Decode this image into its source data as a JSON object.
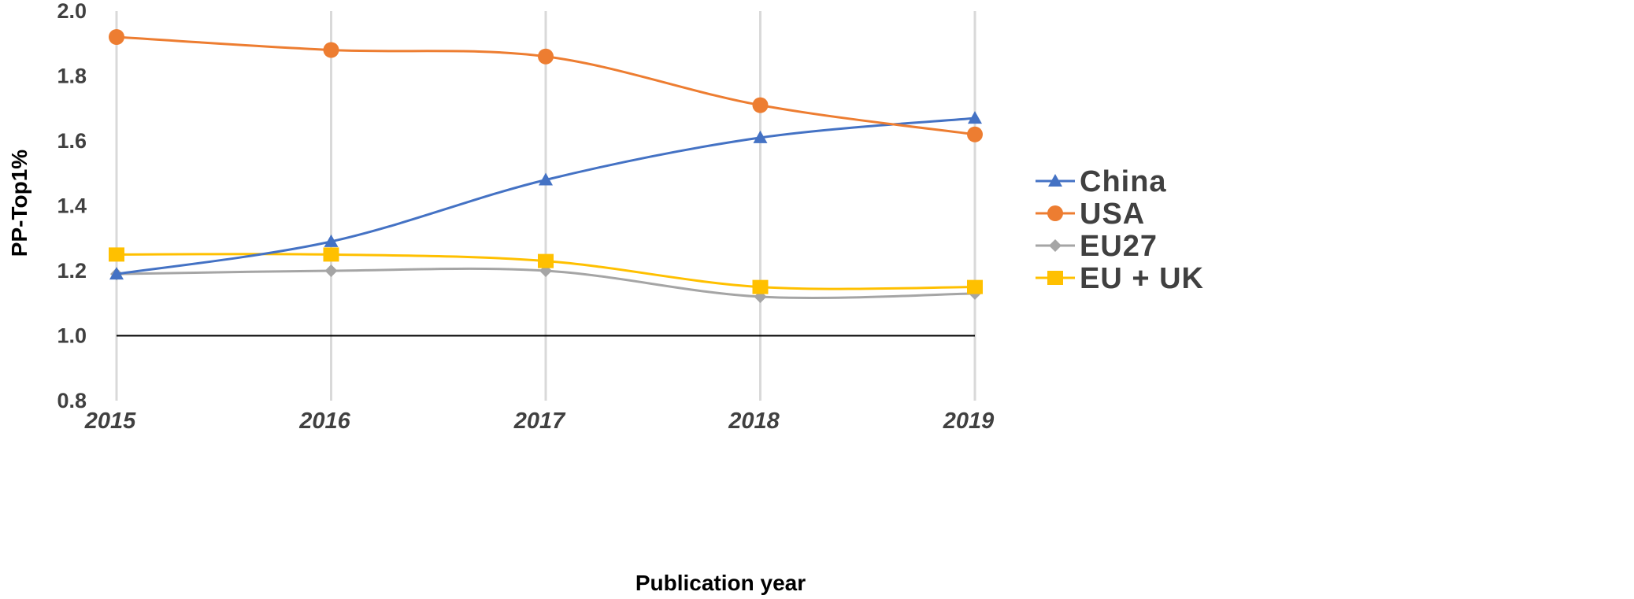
{
  "chart_data": {
    "type": "line",
    "xlabel": "Publication year",
    "ylabel": "PP-Top1%",
    "x": [
      "2015",
      "2016",
      "2017",
      "2018",
      "2019"
    ],
    "ylim": [
      0.8,
      2.0
    ],
    "yticks": [
      "0.8",
      "1.0",
      "1.2",
      "1.4",
      "1.6",
      "1.8",
      "2.0"
    ],
    "grid": "vertical",
    "reference_line": 1.0,
    "legend_position": "right",
    "series": [
      {
        "name": "China",
        "marker": "triangle",
        "color": "#4472C4",
        "values": [
          1.19,
          1.29,
          1.48,
          1.61,
          1.67
        ]
      },
      {
        "name": "USA",
        "marker": "circle",
        "color": "#ED7D31",
        "values": [
          1.92,
          1.88,
          1.86,
          1.71,
          1.62
        ]
      },
      {
        "name": "EU27",
        "marker": "diamond",
        "color": "#A5A5A5",
        "values": [
          1.19,
          1.2,
          1.2,
          1.12,
          1.13
        ]
      },
      {
        "name": "EU + UK",
        "marker": "square",
        "color": "#FFC000",
        "values": [
          1.25,
          1.25,
          1.23,
          1.15,
          1.15
        ]
      }
    ]
  }
}
